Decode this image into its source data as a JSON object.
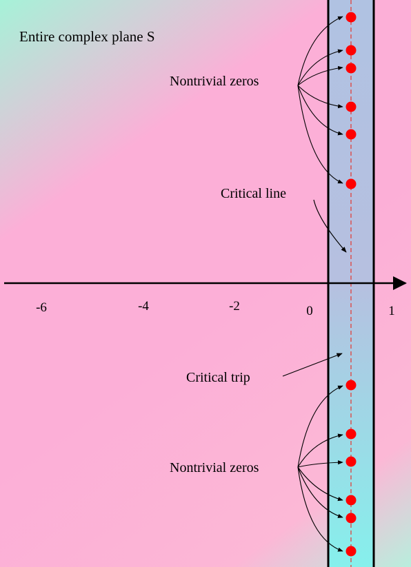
{
  "title": "Entire complex plane S",
  "labels": {
    "zeros_upper": "Nontrivial zeros",
    "critical_line": "Critical line",
    "critical_strip": "Critical trip",
    "zeros_lower": "Nontrivial zeros"
  },
  "axis": {
    "ticks": [
      "-6",
      "-4",
      "-2",
      "0",
      "1"
    ]
  },
  "colors": {
    "background_teal": "#a6f2d8",
    "background_pink": "#fcafd7",
    "strip_top": "#b0c2e2",
    "strip_bottom": "#86f0ec",
    "zero_dot": "#ff0000",
    "critical_line": "#e0403a",
    "axis": "#000000"
  },
  "zeros": {
    "upper_count": 6,
    "lower_count": 6
  }
}
